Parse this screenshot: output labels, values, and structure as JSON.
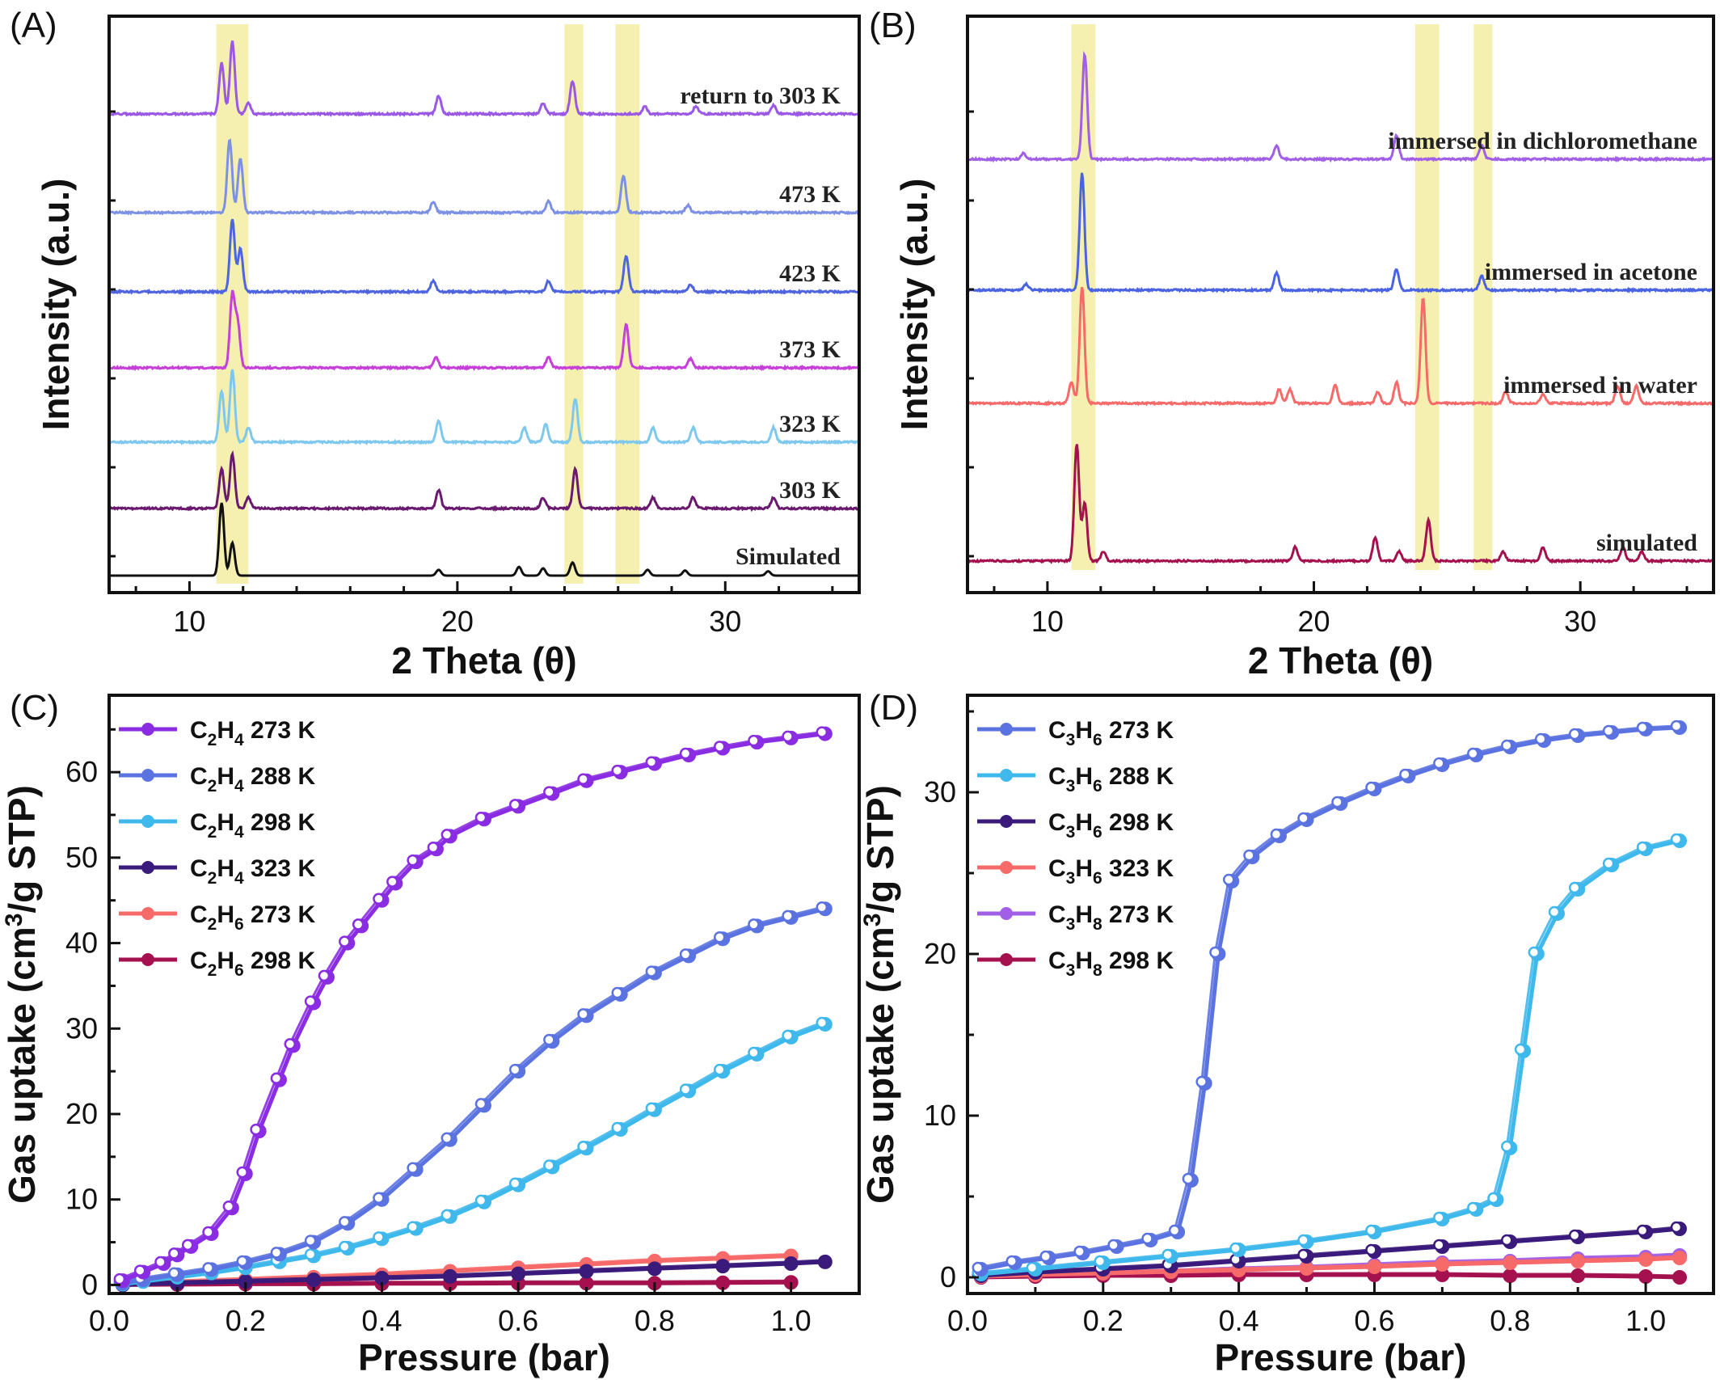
{
  "panels": {
    "A": {
      "label": "(A)"
    },
    "B": {
      "label": "(B)"
    },
    "C": {
      "label": "(C)"
    },
    "D": {
      "label": "(D)"
    }
  },
  "chart_data": [
    {
      "id": "A",
      "type": "line",
      "xlabel": "2 Theta (θ)",
      "ylabel": "Intensity (a.u.)",
      "xlim": [
        7,
        35
      ],
      "xticks": [
        10,
        20,
        30
      ],
      "highlight_bands": [
        [
          11.0,
          12.2
        ],
        [
          24.0,
          24.7
        ],
        [
          25.9,
          26.8
        ]
      ],
      "highlight_color": "#f5f0b0",
      "series": [
        {
          "name": "Simulated",
          "color": "#111111",
          "peaks": [
            [
              11.2,
              1.0
            ],
            [
              11.6,
              0.45
            ],
            [
              19.3,
              0.08
            ],
            [
              22.3,
              0.12
            ],
            [
              23.2,
              0.1
            ],
            [
              24.3,
              0.18
            ],
            [
              27.1,
              0.08
            ],
            [
              28.5,
              0.07
            ],
            [
              31.6,
              0.06
            ]
          ]
        },
        {
          "name": "303 K",
          "color": "#6a1a6e",
          "peaks": [
            [
              11.2,
              0.55
            ],
            [
              11.6,
              0.75
            ],
            [
              12.2,
              0.15
            ],
            [
              19.3,
              0.25
            ],
            [
              23.2,
              0.15
            ],
            [
              24.4,
              0.55
            ],
            [
              27.3,
              0.15
            ],
            [
              28.8,
              0.15
            ],
            [
              31.8,
              0.15
            ]
          ]
        },
        {
          "name": "323 K",
          "color": "#7ec8ee",
          "peaks": [
            [
              11.2,
              0.7
            ],
            [
              11.6,
              1.0
            ],
            [
              12.2,
              0.2
            ],
            [
              19.3,
              0.3
            ],
            [
              22.5,
              0.2
            ],
            [
              23.3,
              0.25
            ],
            [
              24.4,
              0.6
            ],
            [
              27.3,
              0.2
            ],
            [
              28.8,
              0.2
            ],
            [
              31.8,
              0.2
            ]
          ]
        },
        {
          "name": "373 K",
          "color": "#c63fd8",
          "peaks": [
            [
              11.6,
              1.0
            ],
            [
              11.8,
              0.6
            ],
            [
              19.2,
              0.15
            ],
            [
              23.4,
              0.15
            ],
            [
              26.3,
              0.6
            ],
            [
              28.7,
              0.12
            ]
          ]
        },
        {
          "name": "423 K",
          "color": "#4f65e0",
          "peaks": [
            [
              11.6,
              1.0
            ],
            [
              11.9,
              0.6
            ],
            [
              19.1,
              0.15
            ],
            [
              23.4,
              0.15
            ],
            [
              26.3,
              0.5
            ],
            [
              28.7,
              0.1
            ]
          ]
        },
        {
          "name": "473 K",
          "color": "#7c90e4",
          "peaks": [
            [
              11.5,
              1.0
            ],
            [
              11.9,
              0.75
            ],
            [
              19.1,
              0.15
            ],
            [
              23.4,
              0.15
            ],
            [
              26.2,
              0.5
            ],
            [
              28.6,
              0.1
            ]
          ]
        },
        {
          "name": "return to 303 K",
          "color": "#9a58e4",
          "peaks": [
            [
              11.2,
              0.7
            ],
            [
              11.6,
              1.0
            ],
            [
              12.2,
              0.15
            ],
            [
              19.3,
              0.25
            ],
            [
              23.2,
              0.15
            ],
            [
              24.3,
              0.45
            ],
            [
              27.0,
              0.1
            ],
            [
              28.9,
              0.1
            ],
            [
              31.8,
              0.12
            ]
          ]
        }
      ]
    },
    {
      "id": "B",
      "type": "line",
      "xlabel": "2 Theta (θ)",
      "ylabel": "Intensity (a.u.)",
      "xlim": [
        7,
        35
      ],
      "xticks": [
        10,
        20,
        30
      ],
      "highlight_bands": [
        [
          10.9,
          11.8
        ],
        [
          23.8,
          24.7
        ],
        [
          26.0,
          26.7
        ]
      ],
      "highlight_color": "#f5f0b0",
      "series": [
        {
          "name": "simulated",
          "color": "#a4114e",
          "peaks": [
            [
              11.1,
              1.0
            ],
            [
              11.4,
              0.5
            ],
            [
              12.1,
              0.08
            ],
            [
              19.3,
              0.12
            ],
            [
              22.3,
              0.2
            ],
            [
              23.2,
              0.08
            ],
            [
              24.3,
              0.35
            ],
            [
              27.1,
              0.08
            ],
            [
              28.6,
              0.12
            ],
            [
              31.6,
              0.12
            ],
            [
              32.3,
              0.08
            ]
          ]
        },
        {
          "name": "immersed in water",
          "color": "#f76a6a",
          "peaks": [
            [
              10.9,
              0.18
            ],
            [
              11.3,
              1.0
            ],
            [
              18.7,
              0.12
            ],
            [
              19.1,
              0.12
            ],
            [
              20.8,
              0.15
            ],
            [
              22.4,
              0.1
            ],
            [
              23.1,
              0.18
            ],
            [
              24.1,
              0.9
            ],
            [
              27.2,
              0.1
            ],
            [
              28.6,
              0.08
            ],
            [
              31.4,
              0.15
            ],
            [
              32.1,
              0.15
            ]
          ]
        },
        {
          "name": "immersed in acetone",
          "color": "#4a63e2",
          "peaks": [
            [
              9.2,
              0.05
            ],
            [
              11.3,
              1.0
            ],
            [
              18.6,
              0.15
            ],
            [
              23.1,
              0.18
            ],
            [
              26.3,
              0.12
            ]
          ]
        },
        {
          "name": "immersed in dichloromethane",
          "color": "#a15ee6",
          "peaks": [
            [
              9.1,
              0.05
            ],
            [
              11.4,
              0.9
            ],
            [
              18.6,
              0.12
            ],
            [
              23.1,
              0.2
            ],
            [
              26.3,
              0.12
            ]
          ]
        }
      ]
    },
    {
      "id": "C",
      "type": "line",
      "xlabel": "Pressure (bar)",
      "ylabel": "Gas uptake (cm3/g STP)",
      "xlim": [
        0,
        1.1
      ],
      "ylim": [
        -1,
        69
      ],
      "xticks": [
        0.0,
        0.2,
        0.4,
        0.6,
        0.8,
        1.0
      ],
      "yticks": [
        0,
        10,
        20,
        30,
        40,
        50,
        60
      ],
      "legend": "top-left",
      "series": [
        {
          "name": "C2H4 273 K",
          "formula": [
            "C",
            "2",
            "H",
            "4"
          ],
          "temp": " 273 K",
          "color": "#8a2ce2",
          "x": [
            0.02,
            0.05,
            0.08,
            0.1,
            0.12,
            0.15,
            0.18,
            0.2,
            0.22,
            0.25,
            0.27,
            0.3,
            0.32,
            0.35,
            0.37,
            0.4,
            0.42,
            0.45,
            0.48,
            0.5,
            0.55,
            0.6,
            0.65,
            0.7,
            0.75,
            0.8,
            0.85,
            0.9,
            0.95,
            1.0,
            1.05
          ],
          "y": [
            0.5,
            1.5,
            2.5,
            3.5,
            4.5,
            6,
            9,
            13,
            18,
            24,
            28,
            33,
            36,
            40,
            42,
            45,
            47,
            49.5,
            51,
            52.5,
            54.5,
            56,
            57.5,
            59,
            60,
            61,
            62,
            62.8,
            63.5,
            64,
            64.5
          ]
        },
        {
          "name": "C2H4 288 K",
          "formula": [
            "C",
            "2",
            "H",
            "4"
          ],
          "temp": " 288 K",
          "color": "#5b73e0",
          "x": [
            0.02,
            0.05,
            0.1,
            0.15,
            0.2,
            0.25,
            0.3,
            0.35,
            0.4,
            0.45,
            0.5,
            0.55,
            0.6,
            0.65,
            0.7,
            0.75,
            0.8,
            0.85,
            0.9,
            0.95,
            1.0,
            1.05
          ],
          "y": [
            0.2,
            0.6,
            1.2,
            1.8,
            2.6,
            3.6,
            5,
            7.2,
            10,
            13.5,
            17,
            21,
            25,
            28.5,
            31.5,
            34,
            36.5,
            38.5,
            40.5,
            42,
            43,
            44
          ]
        },
        {
          "name": "C2H4 298 K",
          "formula": [
            "C",
            "2",
            "H",
            "4"
          ],
          "temp": " 298 K",
          "color": "#3fb8ec",
          "x": [
            0.02,
            0.05,
            0.1,
            0.15,
            0.2,
            0.25,
            0.3,
            0.35,
            0.4,
            0.45,
            0.5,
            0.55,
            0.6,
            0.65,
            0.7,
            0.75,
            0.8,
            0.85,
            0.9,
            0.95,
            1.0,
            1.05
          ],
          "y": [
            0.1,
            0.4,
            0.9,
            1.4,
            2,
            2.7,
            3.4,
            4.3,
            5.4,
            6.6,
            8,
            9.7,
            11.7,
            13.8,
            16,
            18.2,
            20.5,
            22.7,
            25,
            27,
            29,
            30.5
          ]
        },
        {
          "name": "C2H4 323 K",
          "formula": [
            "C",
            "2",
            "H",
            "4"
          ],
          "temp": " 323 K",
          "color": "#3a1a7a",
          "x": [
            0.02,
            0.1,
            0.2,
            0.3,
            0.4,
            0.5,
            0.6,
            0.7,
            0.8,
            0.9,
            1.0,
            1.05
          ],
          "y": [
            0,
            0.2,
            0.4,
            0.6,
            0.8,
            1.0,
            1.3,
            1.6,
            1.9,
            2.2,
            2.5,
            2.7
          ]
        },
        {
          "name": "C2H6 273 K",
          "formula": [
            "C",
            "2",
            "H",
            "6"
          ],
          "temp": " 273 K",
          "color": "#f76a6a",
          "x": [
            0.02,
            0.1,
            0.2,
            0.3,
            0.4,
            0.5,
            0.6,
            0.7,
            0.8,
            0.9,
            1.0
          ],
          "y": [
            0,
            0.3,
            0.6,
            0.9,
            1.2,
            1.6,
            2.0,
            2.4,
            2.8,
            3.1,
            3.4
          ]
        },
        {
          "name": "C2H6 298 K",
          "formula": [
            "C",
            "2",
            "H",
            "6"
          ],
          "temp": " 298 K",
          "color": "#a4114e",
          "x": [
            0.02,
            0.1,
            0.2,
            0.3,
            0.4,
            0.5,
            0.6,
            0.7,
            0.8,
            0.9,
            1.0
          ],
          "y": [
            0,
            0.05,
            0.1,
            0.1,
            0.15,
            0.15,
            0.2,
            0.2,
            0.2,
            0.25,
            0.3
          ]
        }
      ]
    },
    {
      "id": "D",
      "type": "line",
      "xlabel": "Pressure (bar)",
      "ylabel": "Gas uptake (cm3/g STP)",
      "xlim": [
        0,
        1.1
      ],
      "ylim": [
        -1,
        36
      ],
      "xticks": [
        0.0,
        0.2,
        0.4,
        0.6,
        0.8,
        1.0
      ],
      "yticks": [
        0,
        10,
        20,
        30
      ],
      "legend": "top-left",
      "series": [
        {
          "name": "C3H6 273 K",
          "formula": [
            "C",
            "3",
            "H",
            "6"
          ],
          "temp": " 273 K",
          "color": "#5b73e0",
          "x": [
            0.02,
            0.07,
            0.12,
            0.17,
            0.22,
            0.27,
            0.31,
            0.33,
            0.35,
            0.37,
            0.39,
            0.42,
            0.46,
            0.5,
            0.55,
            0.6,
            0.65,
            0.7,
            0.75,
            0.8,
            0.85,
            0.9,
            0.95,
            1.0,
            1.05
          ],
          "y": [
            0.5,
            0.9,
            1.2,
            1.5,
            1.9,
            2.3,
            2.8,
            6,
            12,
            20,
            24.5,
            26,
            27.3,
            28.3,
            29.3,
            30.2,
            31,
            31.7,
            32.3,
            32.8,
            33.2,
            33.5,
            33.7,
            33.9,
            34
          ]
        },
        {
          "name": "C3H6 288 K",
          "formula": [
            "C",
            "3",
            "H",
            "6"
          ],
          "temp": " 288 K",
          "color": "#3fb8ec",
          "x": [
            0.02,
            0.1,
            0.2,
            0.3,
            0.4,
            0.5,
            0.6,
            0.7,
            0.75,
            0.78,
            0.8,
            0.82,
            0.84,
            0.87,
            0.9,
            0.95,
            1.0,
            1.05
          ],
          "y": [
            0.2,
            0.5,
            0.9,
            1.3,
            1.7,
            2.2,
            2.8,
            3.6,
            4.2,
            4.8,
            8,
            14,
            20,
            22.5,
            24,
            25.5,
            26.5,
            27
          ]
        },
        {
          "name": "C3H6 298 K",
          "formula": [
            "C",
            "3",
            "H",
            "6"
          ],
          "temp": " 298 K",
          "color": "#3a1a7a",
          "x": [
            0.02,
            0.1,
            0.2,
            0.3,
            0.4,
            0.5,
            0.6,
            0.7,
            0.8,
            0.9,
            1.0,
            1.05
          ],
          "y": [
            0.1,
            0.3,
            0.5,
            0.7,
            1.0,
            1.3,
            1.6,
            1.9,
            2.2,
            2.5,
            2.8,
            3.0
          ]
        },
        {
          "name": "C3H6 323 K",
          "formula": [
            "C",
            "3",
            "H",
            "6"
          ],
          "temp": " 323 K",
          "color": "#f76a6a",
          "x": [
            0.02,
            0.1,
            0.2,
            0.3,
            0.4,
            0.5,
            0.6,
            0.7,
            0.8,
            0.9,
            1.0,
            1.05
          ],
          "y": [
            0.05,
            0.15,
            0.25,
            0.35,
            0.45,
            0.55,
            0.65,
            0.8,
            0.9,
            1.0,
            1.1,
            1.2
          ]
        },
        {
          "name": "C3H8 273 K",
          "formula": [
            "C",
            "3",
            "H",
            "8"
          ],
          "temp": " 273 K",
          "color": "#a15ee6",
          "x": [
            0.02,
            0.1,
            0.2,
            0.3,
            0.4,
            0.5,
            0.6,
            0.7,
            0.8,
            0.9,
            1.0,
            1.05
          ],
          "y": [
            0.05,
            0.15,
            0.25,
            0.35,
            0.5,
            0.6,
            0.75,
            0.9,
            1.0,
            1.15,
            1.25,
            1.35
          ]
        },
        {
          "name": "C3H8 298 K",
          "formula": [
            "C",
            "3",
            "H",
            "8"
          ],
          "temp": " 298 K",
          "color": "#a4114e",
          "x": [
            0.02,
            0.1,
            0.2,
            0.3,
            0.4,
            0.5,
            0.6,
            0.7,
            0.8,
            0.9,
            1.0,
            1.05
          ],
          "y": [
            0,
            0.05,
            0.1,
            0.1,
            0.15,
            0.15,
            0.15,
            0.15,
            0.1,
            0.1,
            0.05,
            0
          ]
        }
      ]
    }
  ]
}
